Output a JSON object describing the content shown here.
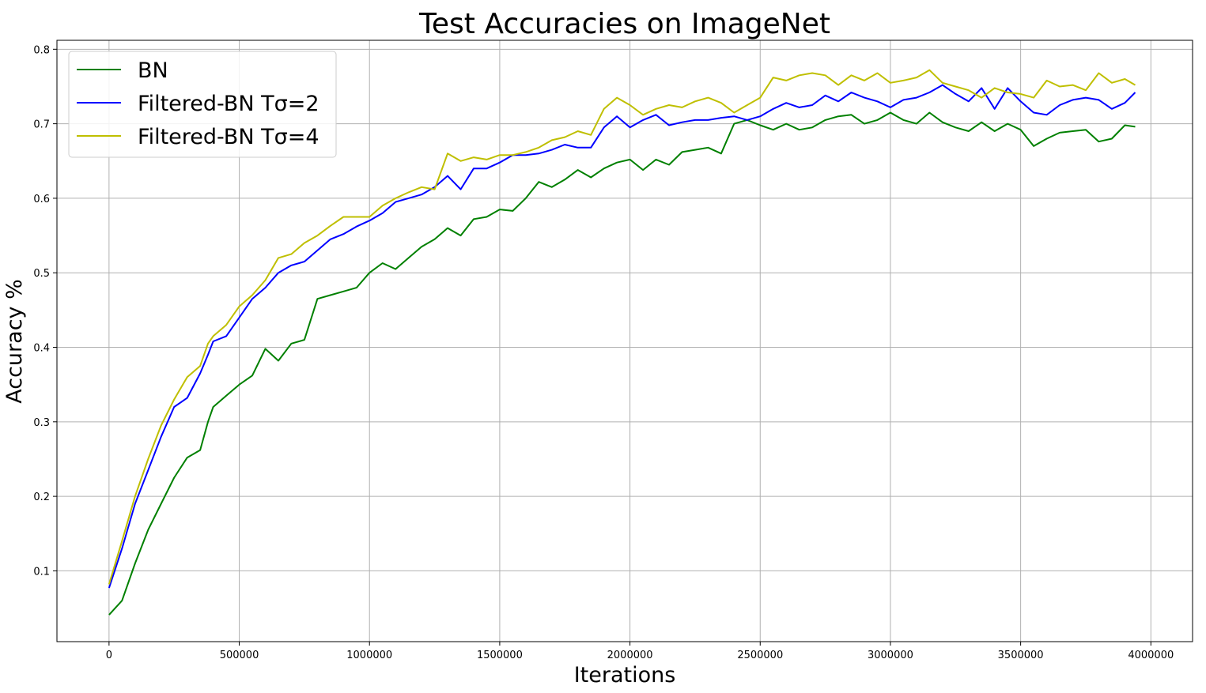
{
  "chart_data": {
    "type": "line",
    "title": "Test Accuracies on ImageNet",
    "xlabel": "Iterations",
    "ylabel": "Accuracy %",
    "xlim": [
      -200000,
      4160000
    ],
    "ylim": [
      0.005,
      0.812
    ],
    "xticks": [
      0,
      500000,
      1000000,
      1500000,
      2000000,
      2500000,
      3000000,
      3500000,
      4000000
    ],
    "yticks": [
      0.1,
      0.2,
      0.3,
      0.4,
      0.5,
      0.6,
      0.7,
      0.8
    ],
    "grid": true,
    "legend_position": "top-left",
    "series": [
      {
        "name": "BN",
        "color": "#008000",
        "points": [
          [
            0,
            0.041
          ],
          [
            50000,
            0.06
          ],
          [
            100000,
            0.11
          ],
          [
            150000,
            0.155
          ],
          [
            200000,
            0.19
          ],
          [
            250000,
            0.225
          ],
          [
            300000,
            0.252
          ],
          [
            350000,
            0.262
          ],
          [
            380000,
            0.3
          ],
          [
            400000,
            0.32
          ],
          [
            450000,
            0.335
          ],
          [
            500000,
            0.35
          ],
          [
            550000,
            0.362
          ],
          [
            600000,
            0.398
          ],
          [
            650000,
            0.382
          ],
          [
            700000,
            0.405
          ],
          [
            750000,
            0.41
          ],
          [
            800000,
            0.465
          ],
          [
            850000,
            0.47
          ],
          [
            900000,
            0.475
          ],
          [
            950000,
            0.48
          ],
          [
            1000000,
            0.5
          ],
          [
            1050000,
            0.513
          ],
          [
            1100000,
            0.505
          ],
          [
            1150000,
            0.52
          ],
          [
            1200000,
            0.535
          ],
          [
            1250000,
            0.545
          ],
          [
            1300000,
            0.56
          ],
          [
            1350000,
            0.55
          ],
          [
            1400000,
            0.572
          ],
          [
            1450000,
            0.575
          ],
          [
            1500000,
            0.585
          ],
          [
            1550000,
            0.583
          ],
          [
            1600000,
            0.6
          ],
          [
            1650000,
            0.622
          ],
          [
            1700000,
            0.615
          ],
          [
            1750000,
            0.625
          ],
          [
            1800000,
            0.638
          ],
          [
            1850000,
            0.628
          ],
          [
            1900000,
            0.64
          ],
          [
            1950000,
            0.648
          ],
          [
            2000000,
            0.652
          ],
          [
            2050000,
            0.638
          ],
          [
            2100000,
            0.652
          ],
          [
            2150000,
            0.645
          ],
          [
            2200000,
            0.662
          ],
          [
            2250000,
            0.665
          ],
          [
            2300000,
            0.668
          ],
          [
            2350000,
            0.66
          ],
          [
            2400000,
            0.7
          ],
          [
            2450000,
            0.705
          ],
          [
            2500000,
            0.698
          ],
          [
            2550000,
            0.692
          ],
          [
            2600000,
            0.7
          ],
          [
            2650000,
            0.692
          ],
          [
            2700000,
            0.695
          ],
          [
            2750000,
            0.705
          ],
          [
            2800000,
            0.71
          ],
          [
            2850000,
            0.712
          ],
          [
            2900000,
            0.7
          ],
          [
            2950000,
            0.705
          ],
          [
            3000000,
            0.715
          ],
          [
            3050000,
            0.705
          ],
          [
            3100000,
            0.7
          ],
          [
            3150000,
            0.715
          ],
          [
            3200000,
            0.702
          ],
          [
            3250000,
            0.695
          ],
          [
            3300000,
            0.69
          ],
          [
            3350000,
            0.702
          ],
          [
            3400000,
            0.69
          ],
          [
            3450000,
            0.7
          ],
          [
            3500000,
            0.692
          ],
          [
            3550000,
            0.67
          ],
          [
            3600000,
            0.68
          ],
          [
            3650000,
            0.688
          ],
          [
            3700000,
            0.69
          ],
          [
            3750000,
            0.692
          ],
          [
            3800000,
            0.676
          ],
          [
            3850000,
            0.68
          ],
          [
            3900000,
            0.698
          ],
          [
            3940000,
            0.696
          ]
        ]
      },
      {
        "name": "Filtered-BN Tσ=2",
        "color": "#0000ff",
        "points": [
          [
            0,
            0.077
          ],
          [
            50000,
            0.13
          ],
          [
            100000,
            0.19
          ],
          [
            150000,
            0.235
          ],
          [
            200000,
            0.28
          ],
          [
            250000,
            0.32
          ],
          [
            300000,
            0.332
          ],
          [
            350000,
            0.365
          ],
          [
            380000,
            0.39
          ],
          [
            400000,
            0.408
          ],
          [
            450000,
            0.415
          ],
          [
            500000,
            0.44
          ],
          [
            550000,
            0.465
          ],
          [
            600000,
            0.48
          ],
          [
            650000,
            0.5
          ],
          [
            700000,
            0.51
          ],
          [
            750000,
            0.515
          ],
          [
            800000,
            0.53
          ],
          [
            850000,
            0.545
          ],
          [
            900000,
            0.552
          ],
          [
            950000,
            0.562
          ],
          [
            1000000,
            0.57
          ],
          [
            1050000,
            0.58
          ],
          [
            1100000,
            0.595
          ],
          [
            1150000,
            0.6
          ],
          [
            1200000,
            0.605
          ],
          [
            1250000,
            0.615
          ],
          [
            1300000,
            0.63
          ],
          [
            1350000,
            0.612
          ],
          [
            1400000,
            0.64
          ],
          [
            1450000,
            0.64
          ],
          [
            1500000,
            0.648
          ],
          [
            1550000,
            0.658
          ],
          [
            1600000,
            0.658
          ],
          [
            1650000,
            0.66
          ],
          [
            1700000,
            0.665
          ],
          [
            1750000,
            0.672
          ],
          [
            1800000,
            0.668
          ],
          [
            1850000,
            0.668
          ],
          [
            1900000,
            0.695
          ],
          [
            1950000,
            0.71
          ],
          [
            2000000,
            0.695
          ],
          [
            2050000,
            0.705
          ],
          [
            2100000,
            0.712
          ],
          [
            2150000,
            0.698
          ],
          [
            2200000,
            0.702
          ],
          [
            2250000,
            0.705
          ],
          [
            2300000,
            0.705
          ],
          [
            2350000,
            0.708
          ],
          [
            2400000,
            0.71
          ],
          [
            2450000,
            0.705
          ],
          [
            2500000,
            0.71
          ],
          [
            2550000,
            0.72
          ],
          [
            2600000,
            0.728
          ],
          [
            2650000,
            0.722
          ],
          [
            2700000,
            0.725
          ],
          [
            2750000,
            0.738
          ],
          [
            2800000,
            0.73
          ],
          [
            2850000,
            0.742
          ],
          [
            2900000,
            0.735
          ],
          [
            2950000,
            0.73
          ],
          [
            3000000,
            0.722
          ],
          [
            3050000,
            0.732
          ],
          [
            3100000,
            0.735
          ],
          [
            3150000,
            0.742
          ],
          [
            3200000,
            0.752
          ],
          [
            3250000,
            0.74
          ],
          [
            3300000,
            0.73
          ],
          [
            3350000,
            0.748
          ],
          [
            3400000,
            0.72
          ],
          [
            3450000,
            0.748
          ],
          [
            3500000,
            0.73
          ],
          [
            3550000,
            0.715
          ],
          [
            3600000,
            0.712
          ],
          [
            3650000,
            0.725
          ],
          [
            3700000,
            0.732
          ],
          [
            3750000,
            0.735
          ],
          [
            3800000,
            0.732
          ],
          [
            3850000,
            0.72
          ],
          [
            3900000,
            0.728
          ],
          [
            3940000,
            0.742
          ]
        ]
      },
      {
        "name": "Filtered-BN Tσ=4",
        "color": "#bfbf00",
        "points": [
          [
            0,
            0.082
          ],
          [
            50000,
            0.14
          ],
          [
            100000,
            0.2
          ],
          [
            150000,
            0.25
          ],
          [
            200000,
            0.295
          ],
          [
            250000,
            0.33
          ],
          [
            300000,
            0.36
          ],
          [
            350000,
            0.375
          ],
          [
            380000,
            0.405
          ],
          [
            400000,
            0.415
          ],
          [
            450000,
            0.43
          ],
          [
            500000,
            0.455
          ],
          [
            550000,
            0.47
          ],
          [
            600000,
            0.49
          ],
          [
            650000,
            0.52
          ],
          [
            700000,
            0.525
          ],
          [
            750000,
            0.54
          ],
          [
            800000,
            0.55
          ],
          [
            850000,
            0.563
          ],
          [
            900000,
            0.575
          ],
          [
            950000,
            0.575
          ],
          [
            1000000,
            0.575
          ],
          [
            1050000,
            0.59
          ],
          [
            1100000,
            0.6
          ],
          [
            1150000,
            0.608
          ],
          [
            1200000,
            0.615
          ],
          [
            1250000,
            0.612
          ],
          [
            1300000,
            0.66
          ],
          [
            1350000,
            0.65
          ],
          [
            1400000,
            0.655
          ],
          [
            1450000,
            0.652
          ],
          [
            1500000,
            0.658
          ],
          [
            1550000,
            0.658
          ],
          [
            1600000,
            0.662
          ],
          [
            1650000,
            0.668
          ],
          [
            1700000,
            0.678
          ],
          [
            1750000,
            0.682
          ],
          [
            1800000,
            0.69
          ],
          [
            1850000,
            0.685
          ],
          [
            1900000,
            0.72
          ],
          [
            1950000,
            0.735
          ],
          [
            2000000,
            0.725
          ],
          [
            2050000,
            0.712
          ],
          [
            2100000,
            0.72
          ],
          [
            2150000,
            0.725
          ],
          [
            2200000,
            0.722
          ],
          [
            2250000,
            0.73
          ],
          [
            2300000,
            0.735
          ],
          [
            2350000,
            0.728
          ],
          [
            2400000,
            0.715
          ],
          [
            2450000,
            0.725
          ],
          [
            2500000,
            0.735
          ],
          [
            2550000,
            0.762
          ],
          [
            2600000,
            0.758
          ],
          [
            2650000,
            0.765
          ],
          [
            2700000,
            0.768
          ],
          [
            2750000,
            0.765
          ],
          [
            2800000,
            0.752
          ],
          [
            2850000,
            0.765
          ],
          [
            2900000,
            0.758
          ],
          [
            2950000,
            0.768
          ],
          [
            3000000,
            0.755
          ],
          [
            3050000,
            0.758
          ],
          [
            3100000,
            0.762
          ],
          [
            3150000,
            0.772
          ],
          [
            3200000,
            0.755
          ],
          [
            3250000,
            0.75
          ],
          [
            3300000,
            0.745
          ],
          [
            3350000,
            0.735
          ],
          [
            3400000,
            0.748
          ],
          [
            3450000,
            0.742
          ],
          [
            3500000,
            0.74
          ],
          [
            3550000,
            0.735
          ],
          [
            3600000,
            0.758
          ],
          [
            3650000,
            0.75
          ],
          [
            3700000,
            0.752
          ],
          [
            3750000,
            0.745
          ],
          [
            3800000,
            0.768
          ],
          [
            3850000,
            0.755
          ],
          [
            3900000,
            0.76
          ],
          [
            3940000,
            0.752
          ]
        ]
      }
    ]
  }
}
